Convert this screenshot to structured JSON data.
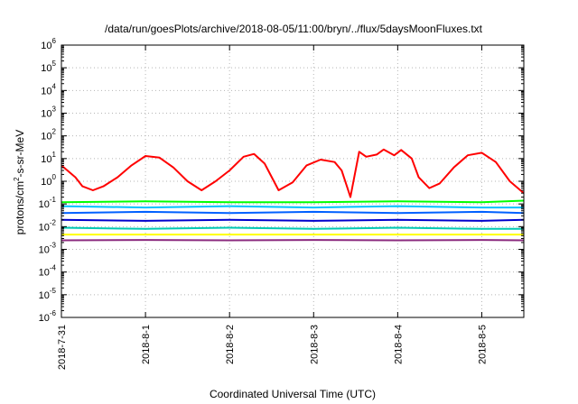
{
  "chart_data": {
    "type": "line",
    "title": "/data/run/goesPlots/archive/2018-08-05/11:00/bryn/../flux/5daysMoonFluxes.txt",
    "xlabel": "Coordinated Universal Time (UTC)",
    "ylabel_parts": [
      "protons/cm",
      "2",
      "-s-sr-MeV"
    ],
    "y_scale": "log",
    "ylim": [
      1e-06,
      1000000.0
    ],
    "y_ticks": [
      {
        "base": "10",
        "exp": "-6",
        "value": 1e-06
      },
      {
        "base": "10",
        "exp": "-5",
        "value": 1e-05
      },
      {
        "base": "10",
        "exp": "-4",
        "value": 0.0001
      },
      {
        "base": "10",
        "exp": "-3",
        "value": 0.001
      },
      {
        "base": "10",
        "exp": "-2",
        "value": 0.01
      },
      {
        "base": "10",
        "exp": "-1",
        "value": 0.1
      },
      {
        "base": "10",
        "exp": "0",
        "value": 1
      },
      {
        "base": "10",
        "exp": "1",
        "value": 10
      },
      {
        "base": "10",
        "exp": "2",
        "value": 100
      },
      {
        "base": "10",
        "exp": "3",
        "value": 1000
      },
      {
        "base": "10",
        "exp": "4",
        "value": 10000
      },
      {
        "base": "10",
        "exp": "5",
        "value": 100000
      },
      {
        "base": "10",
        "exp": "6",
        "value": 1000000
      }
    ],
    "xlim": [
      "2018-07-31",
      "2018-08-05T12:00"
    ],
    "x_ticks": [
      "2018-7-31",
      "2018-8-1",
      "2018-8-2",
      "2018-8-3",
      "2018-8-4",
      "2018-8-5"
    ],
    "x_tick_dates": [
      "2018-07-31",
      "2018-08-01",
      "2018-08-02",
      "2018-08-03",
      "2018-08-04",
      "2018-08-05"
    ],
    "grid": true,
    "legend": "none",
    "series": [
      {
        "color": "#ff0000",
        "x": [
          "2018-07-31T00:00",
          "2018-07-31T04:00",
          "2018-07-31T06:00",
          "2018-07-31T09:00",
          "2018-07-31T12:00",
          "2018-07-31T16:00",
          "2018-07-31T20:00",
          "2018-08-01T00:00",
          "2018-08-01T04:00",
          "2018-08-01T08:00",
          "2018-08-01T12:00",
          "2018-08-01T16:00",
          "2018-08-01T20:00",
          "2018-08-02T00:00",
          "2018-08-02T04:00",
          "2018-08-02T07:00",
          "2018-08-02T10:00",
          "2018-08-02T14:00",
          "2018-08-02T18:00",
          "2018-08-02T22:00",
          "2018-08-03T02:00",
          "2018-08-03T06:00",
          "2018-08-03T08:00",
          "2018-08-03T09:30",
          "2018-08-03T10:30",
          "2018-08-03T13:00",
          "2018-08-03T15:00",
          "2018-08-03T18:00",
          "2018-08-03T20:00",
          "2018-08-03T23:00",
          "2018-08-04T01:00",
          "2018-08-04T04:00",
          "2018-08-04T06:00",
          "2018-08-04T09:00",
          "2018-08-04T12:00",
          "2018-08-04T16:00",
          "2018-08-04T20:00",
          "2018-08-05T00:00",
          "2018-08-05T04:00",
          "2018-08-05T08:00",
          "2018-08-05T12:00"
        ],
        "y": [
          5,
          1.5,
          0.6,
          0.4,
          0.6,
          1.5,
          5,
          13,
          11,
          4,
          1,
          0.4,
          1,
          3,
          12,
          16,
          6,
          0.4,
          0.9,
          5,
          9,
          7,
          3,
          0.6,
          0.2,
          20,
          12,
          15,
          25,
          14,
          24,
          10,
          1.5,
          0.5,
          0.8,
          4,
          14,
          18,
          7,
          1,
          0.3
        ]
      },
      {
        "color": "#00ff00",
        "x": [
          "2018-07-31T00:00",
          "2018-08-01T00:00",
          "2018-08-02T00:00",
          "2018-08-03T00:00",
          "2018-08-04T00:00",
          "2018-08-05T00:00",
          "2018-08-05T12:00"
        ],
        "y": [
          0.12,
          0.13,
          0.12,
          0.12,
          0.13,
          0.12,
          0.14
        ]
      },
      {
        "color": "#00c0ff",
        "x": [
          "2018-07-31T00:00",
          "2018-08-01T00:00",
          "2018-08-02T00:00",
          "2018-08-03T00:00",
          "2018-08-04T00:00",
          "2018-08-05T00:00",
          "2018-08-05T12:00"
        ],
        "y": [
          0.08,
          0.07,
          0.08,
          0.07,
          0.08,
          0.07,
          0.07
        ]
      },
      {
        "color": "#0060ff",
        "x": [
          "2018-07-31T00:00",
          "2018-08-01T00:00",
          "2018-08-02T00:00",
          "2018-08-03T00:00",
          "2018-08-04T00:00",
          "2018-08-05T00:00",
          "2018-08-05T12:00"
        ],
        "y": [
          0.04,
          0.045,
          0.04,
          0.045,
          0.04,
          0.045,
          0.04
        ]
      },
      {
        "color": "#0000cc",
        "x": [
          "2018-07-31T00:00",
          "2018-08-01T00:00",
          "2018-08-02T00:00",
          "2018-08-03T00:00",
          "2018-08-04T00:00",
          "2018-08-05T00:00",
          "2018-08-05T12:00"
        ],
        "y": [
          0.02,
          0.018,
          0.02,
          0.018,
          0.02,
          0.018,
          0.02
        ]
      },
      {
        "color": "#00c8b4",
        "x": [
          "2018-07-31T00:00",
          "2018-08-01T00:00",
          "2018-08-02T00:00",
          "2018-08-03T00:00",
          "2018-08-04T00:00",
          "2018-08-05T00:00",
          "2018-08-05T12:00"
        ],
        "y": [
          0.009,
          0.008,
          0.009,
          0.008,
          0.009,
          0.008,
          0.008
        ]
      },
      {
        "color": "#ffff00",
        "x": [
          "2018-07-31T00:00",
          "2018-08-01T00:00",
          "2018-08-02T00:00",
          "2018-08-03T00:00",
          "2018-08-04T00:00",
          "2018-08-05T00:00",
          "2018-08-05T12:00"
        ],
        "y": [
          0.0045,
          0.0045,
          0.0045,
          0.0045,
          0.0045,
          0.0045,
          0.0045
        ]
      },
      {
        "color": "#8b2a7e",
        "x": [
          "2018-07-31T00:00",
          "2018-08-01T00:00",
          "2018-08-02T00:00",
          "2018-08-03T00:00",
          "2018-08-04T00:00",
          "2018-08-05T00:00",
          "2018-08-05T12:00"
        ],
        "y": [
          0.0025,
          0.0026,
          0.0025,
          0.0026,
          0.0025,
          0.0026,
          0.0025
        ]
      }
    ]
  }
}
